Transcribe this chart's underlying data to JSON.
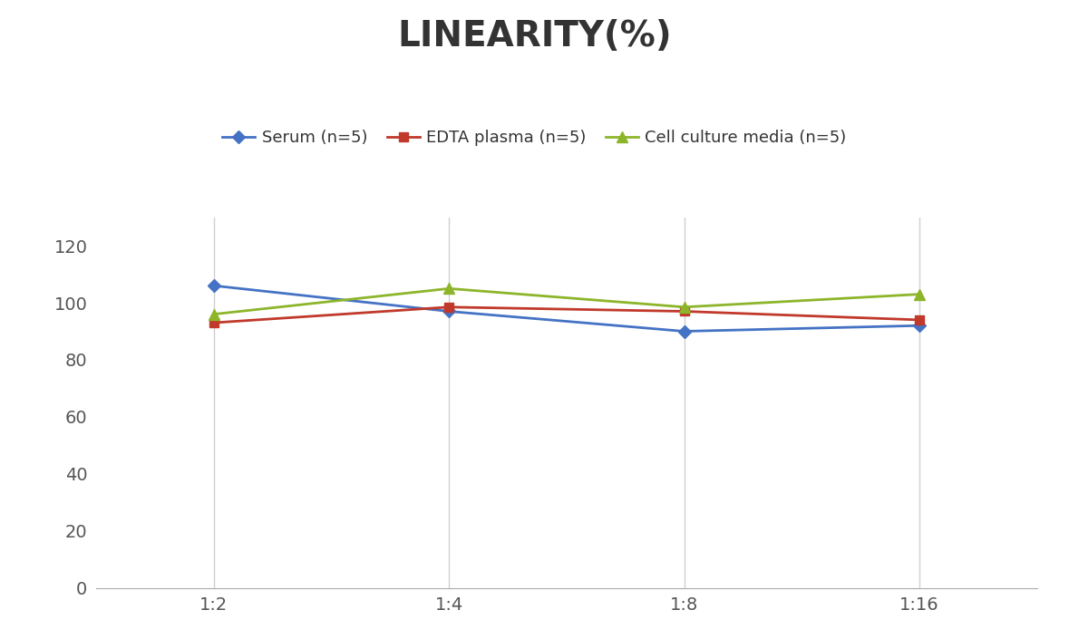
{
  "title": "LINEARITY(%)",
  "x_labels": [
    "1:2",
    "1:4",
    "1:8",
    "1:16"
  ],
  "x_positions": [
    0,
    1,
    2,
    3
  ],
  "series": [
    {
      "label": "Serum (n=5)",
      "values": [
        106,
        97,
        90,
        92
      ],
      "color": "#4472C4",
      "marker": "D",
      "markersize": 7
    },
    {
      "label": "EDTA plasma (n=5)",
      "values": [
        93,
        98.5,
        97,
        94
      ],
      "color": "#C0392B",
      "marker": "s",
      "markersize": 7
    },
    {
      "label": "Cell culture media (n=5)",
      "values": [
        96,
        105,
        98.5,
        103
      ],
      "color": "#8DB52A",
      "marker": "^",
      "markersize": 8
    }
  ],
  "ylim": [
    0,
    130
  ],
  "yticks": [
    0,
    20,
    40,
    60,
    80,
    100,
    120
  ],
  "background_color": "#ffffff",
  "grid_color": "#d0d0d0",
  "title_fontsize": 28,
  "legend_fontsize": 13,
  "tick_fontsize": 14
}
